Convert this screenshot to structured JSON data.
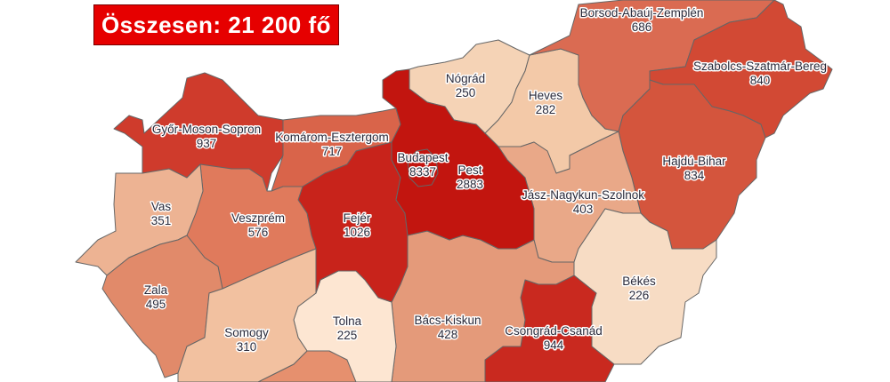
{
  "title": "Összesen: 21 200 fő",
  "title_color": "#e60000",
  "counties": [
    {
      "id": "gyor",
      "name": "Győr-Moson-Sopron",
      "value": "937",
      "color": "#cf3b2c"
    },
    {
      "id": "komarom",
      "name": "Komárom-Esztergom",
      "value": "717",
      "color": "#d9644a"
    },
    {
      "id": "pest",
      "name": "Pest",
      "value": "2883",
      "color": "#c2150f"
    },
    {
      "id": "budapest",
      "name": "Budapest",
      "value": "8337",
      "color": "#c2150f"
    },
    {
      "id": "nograd",
      "name": "Nógrád",
      "value": "250",
      "color": "#f5d3b6"
    },
    {
      "id": "heves",
      "name": "Heves",
      "value": "282",
      "color": "#f3c9a8"
    },
    {
      "id": "borsod",
      "name": "Borsod-Abaúj-Zemplén",
      "value": "686",
      "color": "#da6b52"
    },
    {
      "id": "szabolcs",
      "name": "Szabolcs-Szatmár-Bereg",
      "value": "840",
      "color": "#d24934"
    },
    {
      "id": "hajdu",
      "name": "Hajdú-Bihar",
      "value": "834",
      "color": "#d4553d"
    },
    {
      "id": "jasz",
      "name": "Jász-Nagykun-Szolnok",
      "value": "403",
      "color": "#e9a888"
    },
    {
      "id": "vas",
      "name": "Vas",
      "value": "351",
      "color": "#edb393"
    },
    {
      "id": "veszprem",
      "name": "Veszprém",
      "value": "576",
      "color": "#e07a5c"
    },
    {
      "id": "fejer",
      "name": "Fejér",
      "value": "1026",
      "color": "#c8231b"
    },
    {
      "id": "zala",
      "name": "Zala",
      "value": "495",
      "color": "#e18a6a"
    },
    {
      "id": "somogy",
      "name": "Somogy",
      "value": "310",
      "color": "#f2c1a0"
    },
    {
      "id": "tolna",
      "name": "Tolna",
      "value": "225",
      "color": "#fde6d2"
    },
    {
      "id": "bacs",
      "name": "Bács-Kiskun",
      "value": "428",
      "color": "#e49a7a"
    },
    {
      "id": "csongrad",
      "name": "Csongrád-Csanád",
      "value": "944",
      "color": "#c9291f"
    },
    {
      "id": "bekes",
      "name": "Békés",
      "value": "226",
      "color": "#f7dcc4"
    },
    {
      "id": "baranya",
      "name": "",
      "value": "",
      "color": "#e6906e"
    }
  ]
}
